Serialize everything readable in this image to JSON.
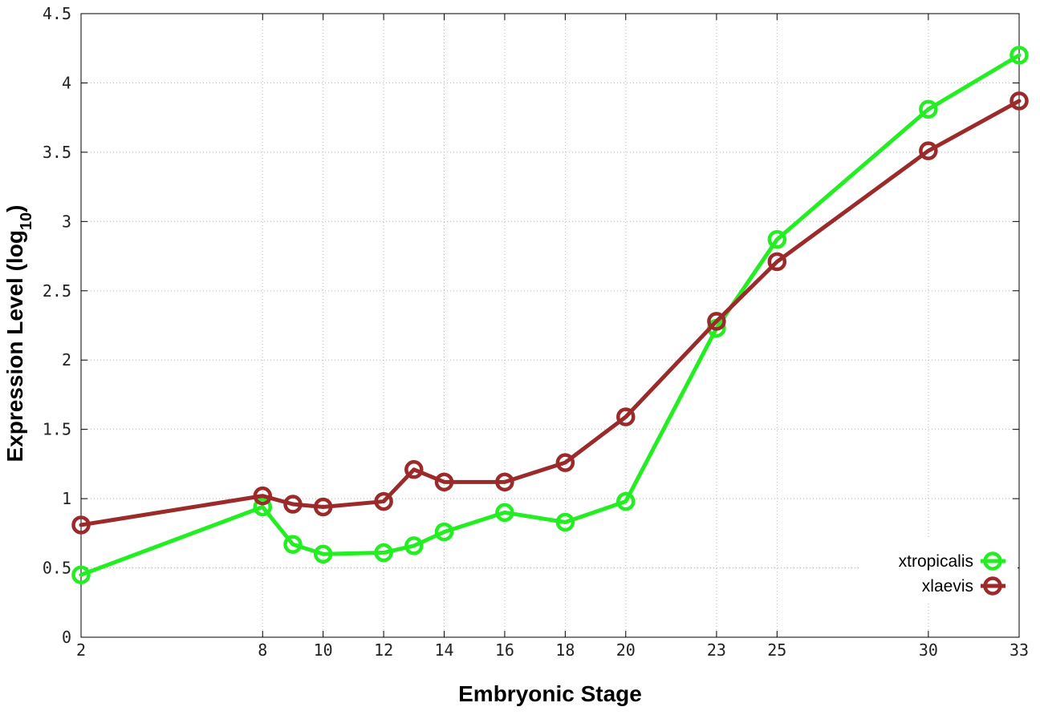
{
  "chart_data": {
    "type": "line",
    "xlabel": "Embryonic Stage",
    "ylabel_main": "Expression Level (log",
    "ylabel_sub": "10",
    "ylabel_close": ")",
    "x_ticks": [
      2,
      8,
      10,
      12,
      14,
      16,
      18,
      20,
      23,
      25,
      30,
      33
    ],
    "x_tick_positions": [
      2,
      8,
      10,
      12,
      14,
      16,
      18,
      20,
      23,
      25,
      30,
      33
    ],
    "y_ticks": [
      0,
      0.5,
      1,
      1.5,
      2,
      2.5,
      3,
      3.5,
      4,
      4.5
    ],
    "y_tick_labels": [
      "0",
      "0.5",
      "1",
      "1.5",
      "2",
      "2.5",
      "3",
      "3.5",
      "4",
      "4.5"
    ],
    "xlim": [
      2,
      33
    ],
    "ylim": [
      0,
      4.5
    ],
    "grid": true,
    "legend_position": "bottom-right",
    "series": [
      {
        "name": "xtropicalis",
        "color": "#22ee22",
        "x": [
          2,
          8,
          9,
          10,
          12,
          13,
          14,
          16,
          18,
          20,
          23,
          25,
          30,
          33
        ],
        "values": [
          0.45,
          0.94,
          0.67,
          0.6,
          0.61,
          0.66,
          0.76,
          0.9,
          0.83,
          0.98,
          2.23,
          2.87,
          3.81,
          4.2
        ]
      },
      {
        "name": "xlaevis",
        "color": "#9b2a2a",
        "x": [
          2,
          8,
          9,
          10,
          12,
          13,
          14,
          16,
          18,
          20,
          23,
          25,
          30,
          33
        ],
        "values": [
          0.81,
          1.02,
          0.96,
          0.94,
          0.98,
          1.21,
          1.12,
          1.12,
          1.26,
          1.59,
          2.28,
          2.71,
          3.51,
          3.87
        ]
      }
    ]
  }
}
